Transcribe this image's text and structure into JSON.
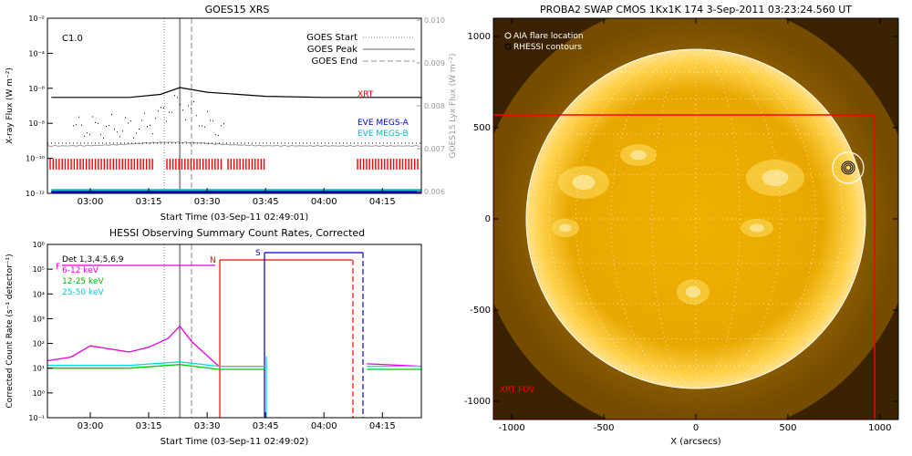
{
  "goes": {
    "title": "GOES15 XRS",
    "flare_class": "C1.0",
    "ylabel": "X-ray Flux (W m⁻²)",
    "y2label": "GOES15 Lyx Flux (W m⁻²)",
    "xlabel": "Start Time (03-Sep-11 02:49:01)",
    "xticks": [
      "03:00",
      "03:15",
      "03:30",
      "03:45",
      "04:00",
      "04:15"
    ],
    "yticks": [
      "10⁻²",
      "10⁻⁴",
      "10⁻⁶",
      "10⁻⁸",
      "10⁻¹⁰",
      "10⁻¹²"
    ],
    "y2ticks": [
      "0.010",
      "0.009",
      "0.008",
      "0.007",
      "0.006"
    ],
    "legend": [
      "GOES Start",
      "GOES Peak",
      "GOES End"
    ],
    "labels": {
      "xrt": "XRT",
      "eve_a": "EVE MEGS-A",
      "eve_b": "EVE MEGS-B"
    },
    "colors": {
      "xrt": "#ff0000",
      "eve_a": "#0000cc",
      "eve_b": "#00cccc",
      "lyx": "#999999"
    }
  },
  "hessi": {
    "title": "HESSI Observing Summary Count Rates, Corrected",
    "ylabel": "Corrected Count Rate (s⁻¹ detector⁻¹)",
    "xlabel": "Start Time (03-Sep-11 02:49:02)",
    "xticks": [
      "03:00",
      "03:15",
      "03:30",
      "03:45",
      "04:00",
      "04:15"
    ],
    "yticks": [
      "10⁶",
      "10⁵",
      "10⁴",
      "10³",
      "10²",
      "10¹",
      "10⁰",
      "10⁻¹"
    ],
    "legend": [
      {
        "text": "Det 1,3,4,5,6,9",
        "color": "#000000"
      },
      {
        "text": "6-12 keV",
        "color": "#e000e0"
      },
      {
        "text": "12-25 keV",
        "color": "#00cc00"
      },
      {
        "text": "25-50 keV",
        "color": "#00dddd"
      }
    ],
    "flag_n": "N",
    "flag_s": "S",
    "flag_f": "F"
  },
  "swap": {
    "title": "PROBA2 SWAP CMOS 1Kx1K 174   3-Sep-2011 03:23:24.560 UT",
    "legend": [
      "AIA flare location",
      "RHESSI contours"
    ],
    "xrt_fov": "XRT FOV",
    "xlabel": "X (arcsecs)",
    "xticks": [
      "-1000",
      "-500",
      "0",
      "500",
      "1000"
    ],
    "yticks": [
      "1000",
      "500",
      "0",
      "-500",
      "-1000"
    ]
  },
  "chart_data": [
    {
      "type": "line",
      "title": "GOES15 XRS",
      "xlabel": "Start Time (03-Sep-11 02:49:01)",
      "ylabel": "X-ray Flux (W m⁻²)",
      "yscale": "log",
      "ylim": [
        1e-12,
        0.01
      ],
      "x_range": [
        "02:49",
        "04:25"
      ],
      "event_times": {
        "start": "03:19",
        "peak": "03:23",
        "end": "03:26"
      },
      "series": [
        {
          "name": "XRT",
          "x": [
            "02:50",
            "03:10",
            "03:18",
            "03:23",
            "03:30",
            "03:45",
            "04:00",
            "04:25"
          ],
          "values": [
            3e-07,
            3e-07,
            4.5e-07,
            1.1e-06,
            6e-07,
            3.5e-07,
            3e-07,
            3e-07
          ]
        },
        {
          "name": "EVE MEGS-A",
          "x": [
            "02:50",
            "04:25"
          ],
          "values": [
            1.2e-12,
            1.2e-12
          ]
        },
        {
          "name": "EVE MEGS-B",
          "x": [
            "02:50",
            "04:25"
          ],
          "values": [
            1.6e-12,
            1.6e-12
          ]
        }
      ]
    },
    {
      "type": "line",
      "title": "HESSI Observing Summary Count Rates, Corrected",
      "xlabel": "Start Time (03-Sep-11 02:49:02)",
      "ylabel": "Corrected Count Rate (s⁻¹ detector⁻¹)",
      "yscale": "log",
      "ylim": [
        0.1,
        1000000.0
      ],
      "x_range": [
        "02:49",
        "04:25"
      ],
      "event_times": {
        "start": "03:19",
        "peak": "03:23",
        "end": "03:26"
      },
      "series": [
        {
          "name": "6-12 keV",
          "x": [
            "02:49",
            "02:55",
            "03:00",
            "03:05",
            "03:10",
            "03:15",
            "03:20",
            "03:23",
            "03:26",
            "03:33",
            "03:45",
            "04:11",
            "04:25"
          ],
          "values": [
            20,
            28,
            80,
            60,
            45,
            70,
            160,
            500,
            120,
            12,
            12,
            15,
            12
          ]
        },
        {
          "name": "12-25 keV",
          "x": [
            "02:49",
            "03:10",
            "03:23",
            "03:33",
            "03:45",
            "04:11",
            "04:25"
          ],
          "values": [
            10,
            10,
            14,
            9,
            9,
            9,
            9
          ]
        },
        {
          "name": "25-50 keV",
          "x": [
            "02:49",
            "03:10",
            "03:23",
            "03:33",
            "03:45",
            "04:11",
            "04:25"
          ],
          "values": [
            13,
            13,
            18,
            12,
            12,
            12,
            12
          ]
        }
      ]
    }
  ]
}
